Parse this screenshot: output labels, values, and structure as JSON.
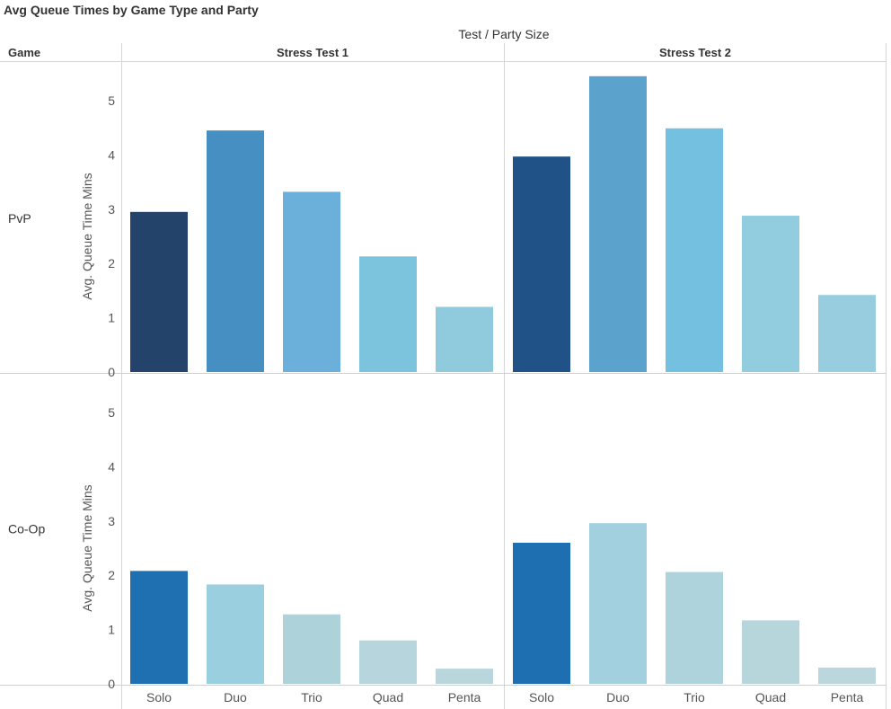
{
  "title": "Avg Queue Times by Game Type and Party",
  "header": {
    "column_header": "Test  /  Party Size",
    "row_header": "Game"
  },
  "colors": {
    "pvp": {
      "Stress Test 1": [
        "#24436a",
        "#468fc2",
        "#6ab0da",
        "#7cc4de",
        "#8fcadd"
      ],
      "Stress Test 2": [
        "#205288",
        "#5ba2cc",
        "#74c0e0",
        "#92ccdf",
        "#98cddf"
      ]
    },
    "coop": {
      "Stress Test 1": [
        "#1f70b0",
        "#99cfde",
        "#aed2da",
        "#b6d5dc",
        "#bad6dd"
      ],
      "Stress Test 2": [
        "#1e6fb1",
        "#a3d0df",
        "#aed3dc",
        "#b7d6dc",
        "#bbd7dd"
      ]
    }
  },
  "chart_data": {
    "type": "bar",
    "title": "Avg Queue Times by Game Type and Party",
    "categories": [
      "Solo",
      "Duo",
      "Trio",
      "Quad",
      "Penta"
    ],
    "columns": [
      "Stress Test 1",
      "Stress Test 2"
    ],
    "ylabel": "Avg. Queue  Time Mins",
    "ylim": [
      0,
      5.5
    ],
    "yticks": [
      0,
      1,
      2,
      3,
      4,
      5
    ],
    "panels": [
      {
        "key": "pvp",
        "label": "PvP",
        "series": [
          {
            "name": "Stress Test 1",
            "values": [
              2.95,
              4.45,
              3.32,
              2.13,
              1.2
            ]
          },
          {
            "name": "Stress Test 2",
            "values": [
              3.97,
              5.45,
              4.49,
              2.88,
              1.42
            ]
          }
        ]
      },
      {
        "key": "coop",
        "label": "Co-Op",
        "series": [
          {
            "name": "Stress Test 1",
            "values": [
              2.08,
              1.83,
              1.28,
              0.8,
              0.28
            ]
          },
          {
            "name": "Stress Test 2",
            "values": [
              2.6,
              2.96,
              2.06,
              1.17,
              0.3
            ]
          }
        ]
      }
    ]
  }
}
